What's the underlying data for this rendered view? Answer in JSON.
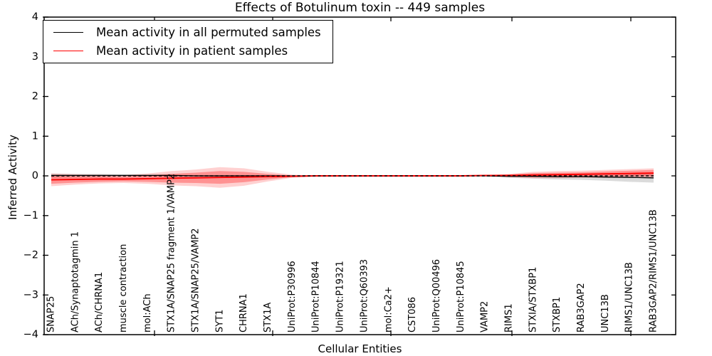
{
  "chart_data": {
    "type": "line",
    "title": "Effects of Botulinum toxin -- 449 samples",
    "xlabel": "Cellular Entities",
    "ylabel": "Inferred Activity",
    "ylim": [
      -4,
      4
    ],
    "yticks": [
      4,
      3,
      2,
      1,
      0,
      -1,
      -2,
      -3,
      -4
    ],
    "grid": false,
    "legend_position": "upper left",
    "zero_line": {
      "style": "dashed",
      "color": "#000000",
      "y": 0
    },
    "categories": [
      "SNAP25",
      "ACh/Synaptotagmin 1",
      "ACh/CHRNA1",
      "muscle contraction",
      "mol:ACh",
      "STX1A/SNAP25 fragment 1/VAMP2",
      "STX1A/SNAP25/VAMP2",
      "SYT1",
      "CHRNA1",
      "STX1A",
      "UniProt:P30996",
      "UniProt:P10844",
      "UniProt:P19321",
      "UniProt:Q60393",
      "mol:Ca2+",
      "CST086",
      "UniProt:Q00496",
      "UniProt:P10845",
      "VAMP2",
      "RIMS1",
      "STXIA/STXBP1",
      "STXBP1",
      "RAB3GAP2",
      "UNC13B",
      "RIMS1/UNC13B",
      "RAB3GAP2/RIMS1/UNC13B"
    ],
    "series": [
      {
        "name": "Mean activity in all permuted samples",
        "color": "#000000",
        "values": [
          0.01,
          0.01,
          0.01,
          0.01,
          0.01,
          0.01,
          0.0,
          0.0,
          0.0,
          0.0,
          0.0,
          0.0,
          0.0,
          0.0,
          0.0,
          0.0,
          0.0,
          0.0,
          0.0,
          -0.01,
          -0.01,
          -0.02,
          -0.02,
          -0.03,
          -0.04,
          -0.05
        ]
      },
      {
        "name": "Mean activity in patient samples",
        "color": "#ff0000",
        "values": [
          -0.1,
          -0.09,
          -0.08,
          -0.08,
          -0.07,
          -0.06,
          -0.05,
          -0.04,
          -0.03,
          -0.02,
          -0.01,
          0.0,
          0.0,
          0.0,
          0.0,
          0.0,
          0.0,
          0.0,
          0.01,
          0.01,
          0.02,
          0.03,
          0.04,
          0.05,
          0.06,
          0.07
        ]
      }
    ],
    "bands": [
      {
        "name": "permuted-samples-std-band",
        "color": "#999999",
        "opacity": 0.35,
        "center_series": 0,
        "half_widths": [
          0.05,
          0.04,
          0.04,
          0.03,
          0.03,
          0.03,
          0.02,
          0.02,
          0.02,
          0.01,
          0.01,
          0.0,
          0.0,
          0.0,
          0.0,
          0.0,
          0.0,
          0.01,
          0.02,
          0.04,
          0.06,
          0.07,
          0.08,
          0.09,
          0.11,
          0.12
        ]
      },
      {
        "name": "patient-samples-outer-band",
        "color": "#ff0000",
        "opacity": 0.18,
        "center_series": 1,
        "half_widths": [
          0.16,
          0.13,
          0.11,
          0.1,
          0.13,
          0.18,
          0.21,
          0.26,
          0.22,
          0.12,
          0.04,
          0.01,
          0.0,
          0.0,
          0.0,
          0.0,
          0.0,
          0.0,
          0.01,
          0.04,
          0.08,
          0.09,
          0.09,
          0.1,
          0.11,
          0.12
        ]
      },
      {
        "name": "patient-samples-inner-band",
        "color": "#ff0000",
        "opacity": 0.3,
        "center_series": 1,
        "half_widths": [
          0.1,
          0.08,
          0.07,
          0.06,
          0.08,
          0.11,
          0.13,
          0.16,
          0.13,
          0.07,
          0.02,
          0.01,
          0.0,
          0.0,
          0.0,
          0.0,
          0.0,
          0.0,
          0.01,
          0.02,
          0.05,
          0.05,
          0.05,
          0.06,
          0.07,
          0.08
        ]
      }
    ]
  }
}
